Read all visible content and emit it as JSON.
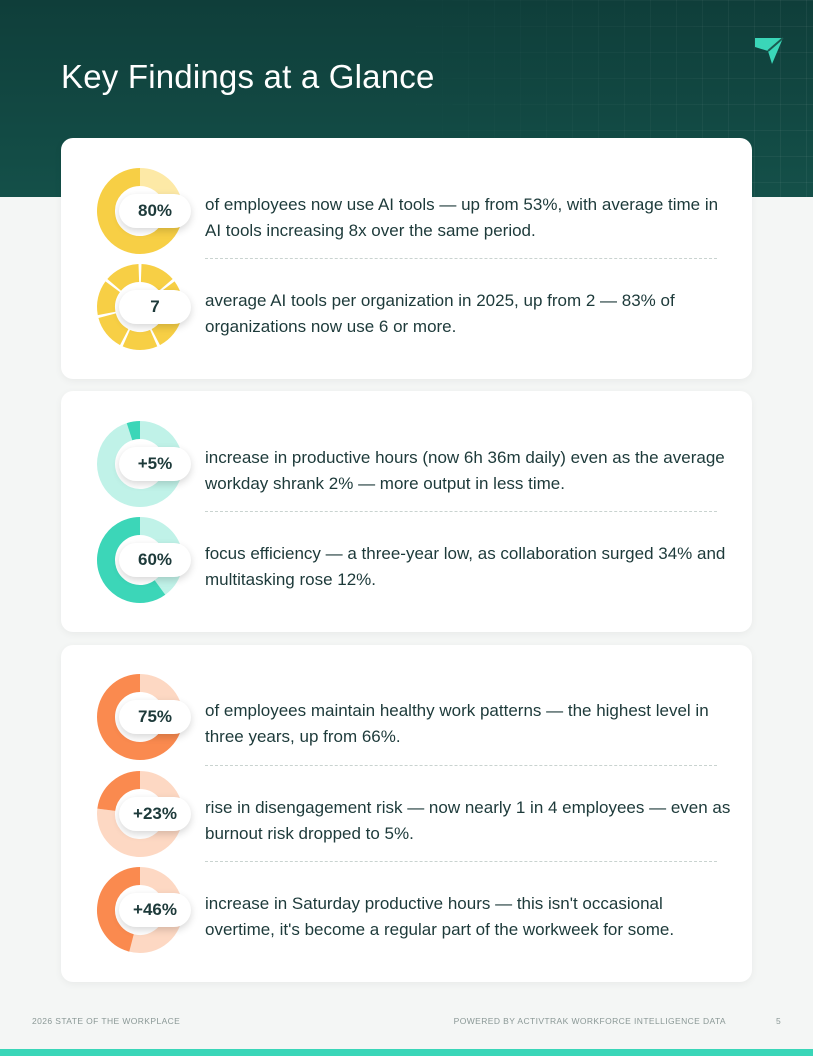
{
  "header": {
    "title": "Key Findings at a Glance"
  },
  "colors": {
    "yellow": "#f7cf45",
    "teal": "#3cd6b8",
    "orange": "#fa8a4f",
    "dark_green": "#0f3e3a"
  },
  "sections": [
    {
      "name": "ai-adoption",
      "findings": [
        {
          "value": "80%",
          "text": "of employees now use AI tools — up from 53%, with average time in AI tools increasing 8x over the same period.",
          "gauge_percent": 80,
          "color": "#f7cf45",
          "track": "#fde9a6"
        },
        {
          "value": "7",
          "text": "average AI tools per organization in 2025, up from 2 — 83% of organizations now use 6 or more.",
          "gauge_segments": 7,
          "color": "#f7cf45"
        }
      ]
    },
    {
      "name": "productivity",
      "findings": [
        {
          "value": "+5%",
          "text": "increase in productive hours (now 6h 36m daily) even as the average workday shrank 2% — more output in less time.",
          "gauge_percent": 5,
          "color": "#3cd6b8",
          "track": "#c0f2e8"
        },
        {
          "value": "60%",
          "text": "focus efficiency — a three-year low, as collaboration surged 34% and multitasking rose 12%.",
          "gauge_percent": 60,
          "color": "#3cd6b8",
          "track": "#c0f2e8"
        }
      ]
    },
    {
      "name": "wellbeing",
      "findings": [
        {
          "value": "75%",
          "text": "of employees maintain healthy work patterns — the highest level in three years, up from 66%.",
          "gauge_percent": 75,
          "color": "#fa8a4f",
          "track": "#fdd8c3"
        },
        {
          "value": "+23%",
          "text": "rise in disengagement risk — now nearly 1 in 4 employees — even as burnout risk dropped to 5%.",
          "gauge_percent": 23,
          "color": "#fa8a4f",
          "track": "#fdd8c3"
        },
        {
          "value": "+46%",
          "text": "increase in Saturday productive hours — this isn't occasional overtime, it's become a regular part of the workweek for some.",
          "gauge_percent": 46,
          "color": "#fa8a4f",
          "track": "#fdd8c3"
        }
      ]
    }
  ],
  "footer": {
    "left": "2026 STATE OF THE WORKPLACE",
    "right": "POWERED BY ACTIVTRAK WORKFORCE INTELLIGENCE DATA",
    "page": "5"
  }
}
